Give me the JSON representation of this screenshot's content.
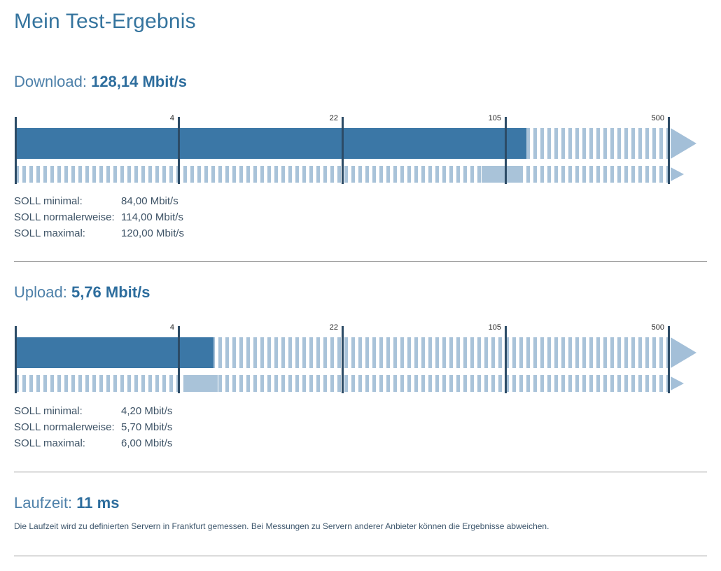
{
  "page_title": "Mein Test-Ergebnis",
  "colors": {
    "heading_blue": "#4d80a9",
    "heading_value_blue": "#2d6d9d",
    "bar_solid": "#3b77a6",
    "bar_stripe": "#a9c3d9",
    "axis_line": "#2c4b66",
    "divider": "#999999",
    "body_text": "#3e5366"
  },
  "sections": {
    "download": {
      "label": "Download: ",
      "value_display": "128,14 Mbit/s",
      "soll_rows": [
        {
          "label": "SOLL minimal:",
          "value": "84,00 Mbit/s"
        },
        {
          "label": "SOLL normalerweise:",
          "value": "114,00 Mbit/s"
        },
        {
          "label": "SOLL maximal:",
          "value": "120,00 Mbit/s"
        }
      ]
    },
    "upload": {
      "label": "Upload: ",
      "value_display": "5,76 Mbit/s",
      "soll_rows": [
        {
          "label": "SOLL minimal:",
          "value": "4,20 Mbit/s"
        },
        {
          "label": "SOLL normalerweise:",
          "value": "5,70 Mbit/s"
        },
        {
          "label": "SOLL maximal:",
          "value": "6,00 Mbit/s"
        }
      ]
    },
    "latency": {
      "label": "Laufzeit: ",
      "value_display": "11 ms",
      "note": "Die Laufzeit wird zu definierten Servern in Frankfurt gemessen. Bei Messungen zu Servern anderer Anbieter können die Ergebnisse abweichen."
    }
  },
  "chart_data": [
    {
      "type": "bar",
      "name": "download",
      "title": "Download",
      "unit": "Mbit/s",
      "scale": "log",
      "axis_min": 0.78,
      "ticks": [
        4,
        22,
        105,
        500
      ],
      "measured": 128.14,
      "soll_min": 84,
      "soll_normal": 114,
      "soll_max": 120,
      "legend": "none",
      "grid": "off"
    },
    {
      "type": "bar",
      "name": "upload",
      "title": "Upload",
      "unit": "Mbit/s",
      "scale": "log",
      "axis_min": 0.78,
      "ticks": [
        4,
        22,
        105,
        500
      ],
      "measured": 5.76,
      "soll_min": 4.2,
      "soll_normal": 5.7,
      "soll_max": 6.0,
      "legend": "none",
      "grid": "off"
    }
  ]
}
